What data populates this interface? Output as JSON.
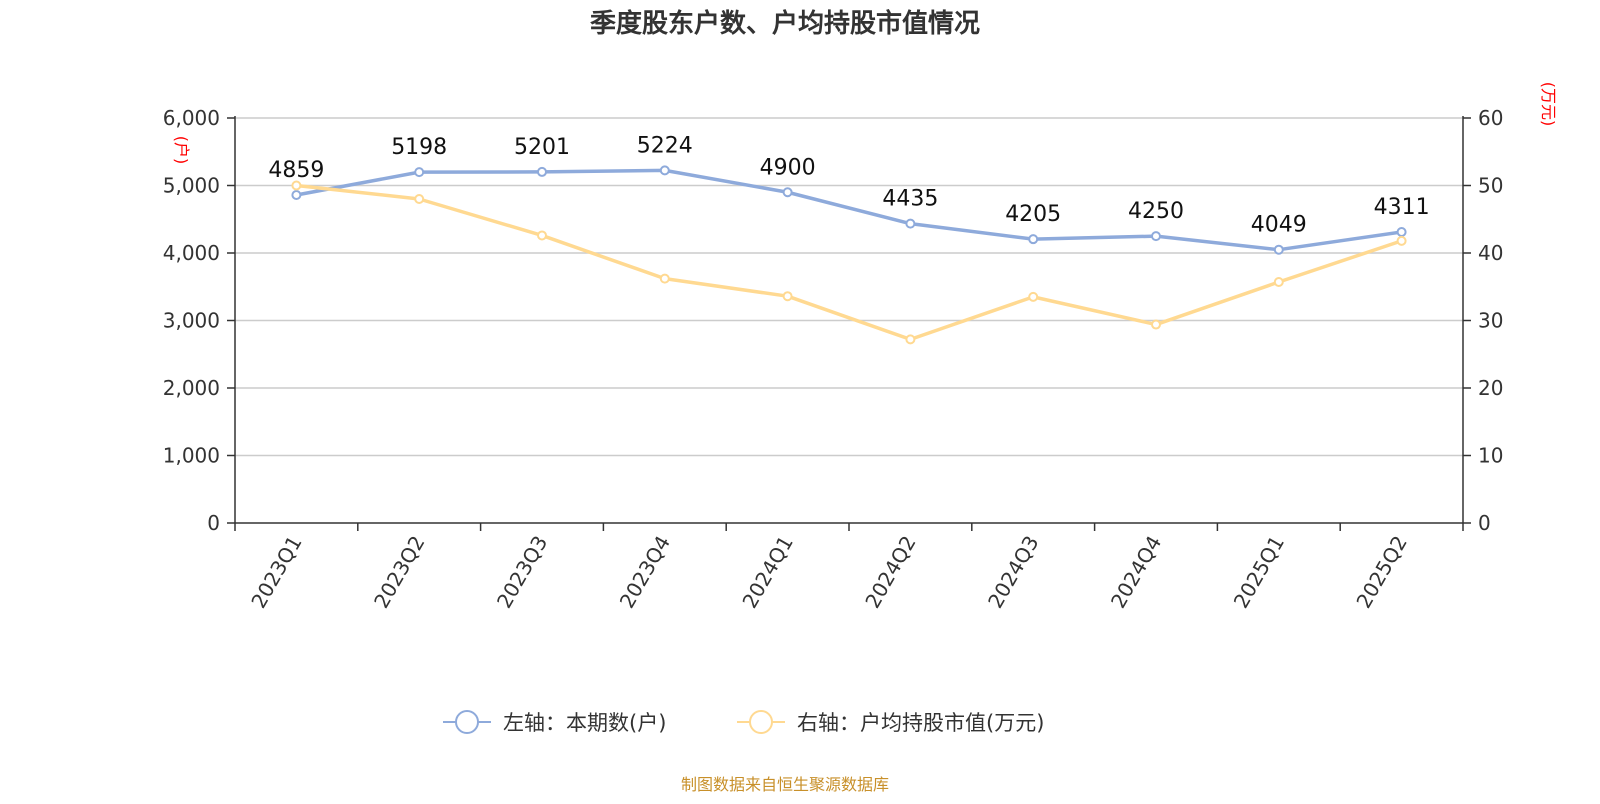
{
  "title": "季度股东户数、户均持股市值情况",
  "source": "制图数据来自恒生聚源数据库",
  "chart_data": {
    "type": "line",
    "title": "季度股东户数、户均持股市值情况",
    "categories": [
      "2023Q1",
      "2023Q2",
      "2023Q3",
      "2023Q4",
      "2024Q1",
      "2024Q2",
      "2024Q3",
      "2024Q4",
      "2025Q1",
      "2025Q2"
    ],
    "left_axis": {
      "unit": "(户)",
      "ylim": [
        0,
        6000
      ],
      "ticks": [
        0,
        1000,
        2000,
        3000,
        4000,
        5000,
        6000
      ],
      "tick_labels": [
        "0",
        "1,000",
        "2,000",
        "3,000",
        "4,000",
        "5,000",
        "6,000"
      ]
    },
    "right_axis": {
      "unit": "(万元)",
      "ylim": [
        0,
        60
      ],
      "ticks": [
        0,
        10,
        20,
        30,
        40,
        50,
        60
      ],
      "tick_labels": [
        "0",
        "10",
        "20",
        "30",
        "40",
        "50",
        "60"
      ]
    },
    "series": [
      {
        "name": "左轴：本期数(户)",
        "axis": "left",
        "color": "#8eaadb",
        "values": [
          4859,
          5198,
          5201,
          5224,
          4900,
          4435,
          4205,
          4250,
          4049,
          4311
        ],
        "data_labels": [
          "4859",
          "5198",
          "5201",
          "5224",
          "4900",
          "4435",
          "4205",
          "4250",
          "4049",
          "4311"
        ]
      },
      {
        "name": "右轴：户均持股市值(万元)",
        "axis": "right",
        "color": "#ffd991",
        "values": [
          50.0,
          48.0,
          42.6,
          36.2,
          33.6,
          27.2,
          33.5,
          29.4,
          35.7,
          41.8
        ]
      }
    ],
    "grid": true,
    "legend_position": "bottom"
  }
}
